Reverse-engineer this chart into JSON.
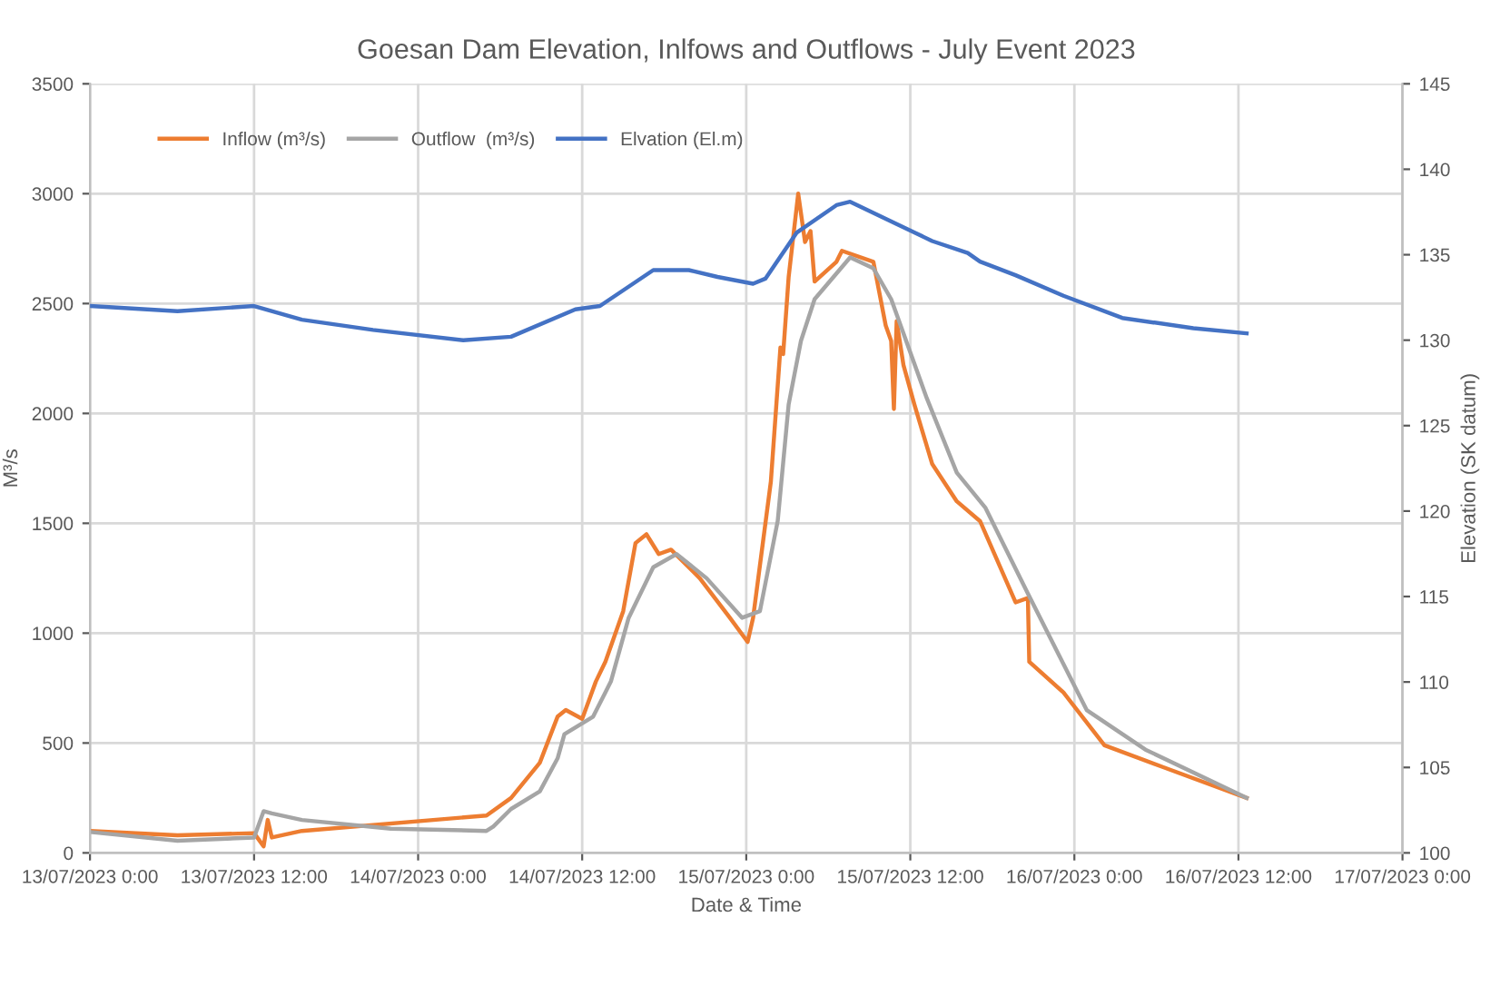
{
  "chart_data": {
    "type": "line",
    "title": "Goesan Dam Elevation, Inlfows and Outflows - July Event 2023",
    "xlabel": "Date & Time",
    "ylabel": "M³/s",
    "y2label": "Elevation (SK datum)",
    "xlim": [
      "2023-07-13T00:00",
      "2023-07-17T00:00"
    ],
    "xticks": [
      {
        "value": "2023-07-13T00:00",
        "label": "13/07/2023 0:00"
      },
      {
        "value": "2023-07-13T12:00",
        "label": "13/07/2023 12:00"
      },
      {
        "value": "2023-07-14T00:00",
        "label": "14/07/2023 0:00"
      },
      {
        "value": "2023-07-14T12:00",
        "label": "14/07/2023 12:00"
      },
      {
        "value": "2023-07-15T00:00",
        "label": "15/07/2023 0:00"
      },
      {
        "value": "2023-07-15T12:00",
        "label": "15/07/2023 12:00"
      },
      {
        "value": "2023-07-16T00:00",
        "label": "16/07/2023 0:00"
      },
      {
        "value": "2023-07-16T12:00",
        "label": "16/07/2023 12:00"
      },
      {
        "value": "2023-07-17T00:00",
        "label": "17/07/2023 0:00"
      }
    ],
    "ylim": [
      0,
      3500
    ],
    "yticks": [
      0,
      500,
      1000,
      1500,
      2000,
      2500,
      3000,
      3500
    ],
    "y2lim": [
      100,
      145
    ],
    "y2ticks": [
      100,
      105,
      110,
      115,
      120,
      125,
      130,
      135,
      140,
      145
    ],
    "grid": true,
    "legend": "top left",
    "marker": "none",
    "line_style": "solid",
    "series": [
      {
        "name": "Inflow (m³/s)",
        "color": "#ed7d31",
        "x": [
          "2023-07-13T00:00",
          "2023-07-13T06:24",
          "2023-07-13T12:00",
          "2023-07-13T12:42",
          "2023-07-13T13:00",
          "2023-07-13T13:18",
          "2023-07-13T15:30",
          "2023-07-14T05:00",
          "2023-07-14T06:48",
          "2023-07-14T08:54",
          "2023-07-14T10:12",
          "2023-07-14T10:48",
          "2023-07-14T12:00",
          "2023-07-14T13:00",
          "2023-07-14T13:42",
          "2023-07-14T15:00",
          "2023-07-14T15:54",
          "2023-07-14T16:42",
          "2023-07-14T17:36",
          "2023-07-14T18:30",
          "2023-07-14T20:36",
          "2023-07-14T22:48",
          "2023-07-15T00:06",
          "2023-07-15T00:30",
          "2023-07-15T01:48",
          "2023-07-15T02:30",
          "2023-07-15T02:42",
          "2023-07-15T03:06",
          "2023-07-15T03:48",
          "2023-07-15T04:18",
          "2023-07-15T04:42",
          "2023-07-15T05:00",
          "2023-07-15T06:36",
          "2023-07-15T07:00",
          "2023-07-15T09:18",
          "2023-07-15T10:12",
          "2023-07-15T10:36",
          "2023-07-15T10:48",
          "2023-07-15T11:00",
          "2023-07-15T11:30",
          "2023-07-15T12:18",
          "2023-07-15T13:36",
          "2023-07-15T15:24",
          "2023-07-15T17:06",
          "2023-07-15T19:42",
          "2023-07-15T20:36",
          "2023-07-15T20:42",
          "2023-07-15T23:12",
          "2023-07-16T02:12",
          "2023-07-16T06:30",
          "2023-07-16T12:36"
        ],
        "values": [
          100,
          80,
          90,
          30,
          150,
          70,
          100,
          170,
          250,
          410,
          620,
          650,
          610,
          780,
          870,
          1100,
          1410,
          1450,
          1360,
          1380,
          1250,
          1070,
          960,
          1070,
          1690,
          2300,
          2270,
          2620,
          3000,
          2780,
          2830,
          2600,
          2690,
          2740,
          2690,
          2400,
          2330,
          2020,
          2420,
          2220,
          2040,
          1770,
          1600,
          1510,
          1140,
          1160,
          870,
          730,
          490,
          390,
          250
        ]
      },
      {
        "name": "Outflow  (m³/s)",
        "color": "#a5a5a5",
        "x": [
          "2023-07-13T00:00",
          "2023-07-13T06:24",
          "2023-07-13T12:00",
          "2023-07-13T12:42",
          "2023-07-13T13:18",
          "2023-07-13T15:30",
          "2023-07-13T22:00",
          "2023-07-14T05:00",
          "2023-07-14T05:30",
          "2023-07-14T06:48",
          "2023-07-14T08:54",
          "2023-07-14T10:12",
          "2023-07-14T10:42",
          "2023-07-14T12:48",
          "2023-07-14T14:06",
          "2023-07-14T15:24",
          "2023-07-14T17:12",
          "2023-07-14T18:54",
          "2023-07-14T21:06",
          "2023-07-14T23:42",
          "2023-07-15T01:00",
          "2023-07-15T02:18",
          "2023-07-15T03:06",
          "2023-07-15T04:00",
          "2023-07-15T05:00",
          "2023-07-15T07:36",
          "2023-07-15T09:18",
          "2023-07-15T10:36",
          "2023-07-15T13:12",
          "2023-07-15T15:24",
          "2023-07-15T17:30",
          "2023-07-15T20:36",
          "2023-07-16T00:54",
          "2023-07-16T05:12",
          "2023-07-16T12:36"
        ],
        "values": [
          95,
          55,
          70,
          190,
          180,
          150,
          110,
          100,
          120,
          200,
          280,
          430,
          540,
          620,
          780,
          1070,
          1300,
          1360,
          1250,
          1070,
          1100,
          1510,
          2040,
          2330,
          2520,
          2710,
          2660,
          2520,
          2070,
          1730,
          1570,
          1180,
          650,
          470,
          250
        ]
      },
      {
        "name": "Elvation (El.m)",
        "color": "#4472c4",
        "axis": "y2",
        "x": [
          "2023-07-13T00:00",
          "2023-07-13T06:24",
          "2023-07-13T12:00",
          "2023-07-13T15:30",
          "2023-07-13T20:42",
          "2023-07-14T03:18",
          "2023-07-14T06:48",
          "2023-07-14T11:30",
          "2023-07-14T13:18",
          "2023-07-14T17:12",
          "2023-07-14T19:48",
          "2023-07-14T21:54",
          "2023-07-15T00:30",
          "2023-07-15T01:24",
          "2023-07-15T03:42",
          "2023-07-15T06:36",
          "2023-07-15T07:36",
          "2023-07-15T11:00",
          "2023-07-15T13:36",
          "2023-07-15T16:12",
          "2023-07-15T17:06",
          "2023-07-15T19:42",
          "2023-07-15T23:12",
          "2023-07-16T03:30",
          "2023-07-16T08:42",
          "2023-07-16T12:36"
        ],
        "values": [
          132.0,
          131.7,
          132.0,
          131.2,
          130.6,
          130.0,
          130.2,
          131.8,
          132.0,
          134.1,
          134.1,
          133.7,
          133.3,
          133.6,
          136.3,
          137.9,
          138.1,
          136.8,
          135.8,
          135.1,
          134.6,
          133.8,
          132.6,
          131.3,
          130.7,
          130.4
        ]
      }
    ]
  }
}
